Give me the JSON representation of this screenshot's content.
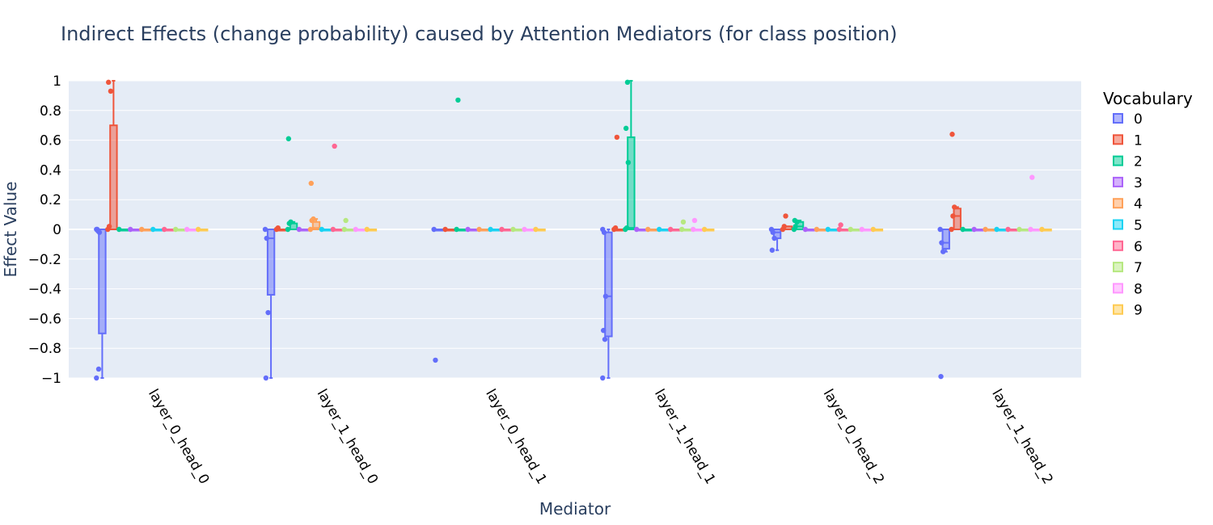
{
  "chart_data": {
    "type": "box",
    "title": "Indirect Effects (change probability) caused by Attention Mediators (for class position)",
    "xlabel": "Mediator",
    "ylabel": "Effect Value",
    "ylim": [
      -1,
      1
    ],
    "yticks": [
      "1",
      "0.8",
      "0.6",
      "0.4",
      "0.2",
      "0",
      "−0.2",
      "−0.4",
      "−0.6",
      "−0.8",
      "−1"
    ],
    "ytick_values": [
      1,
      0.8,
      0.6,
      0.4,
      0.2,
      0,
      -0.2,
      -0.4,
      -0.6,
      -0.8,
      -1
    ],
    "grid": true,
    "categories": [
      "layer_0_head_0",
      "layer_1_head_0",
      "layer_0_head_1",
      "layer_1_head_1",
      "layer_0_head_2",
      "layer_1_head_2"
    ],
    "legend": {
      "title": "Vocabulary",
      "position": "right"
    },
    "series": [
      {
        "name": "0",
        "color": "#636efa",
        "boxes": [
          {
            "q1": -0.7,
            "median": 0,
            "q3": 0,
            "lower": -1,
            "upper": 0,
            "points": [
              0,
              -0.01,
              -0.02,
              0,
              -0.94,
              -1
            ]
          },
          {
            "q1": -0.44,
            "median": -0.06,
            "q3": 0,
            "lower": -1,
            "upper": 0,
            "points": [
              0,
              -0.06,
              -0.56,
              -1
            ]
          },
          {
            "q1": 0,
            "median": 0,
            "q3": 0,
            "lower": 0,
            "upper": 0,
            "points": [
              0,
              -0.88
            ]
          },
          {
            "q1": -0.72,
            "median": -0.45,
            "q3": -0.02,
            "lower": -1,
            "upper": 0,
            "points": [
              0,
              -0.02,
              -0.45,
              -0.68,
              -0.74,
              -1
            ]
          },
          {
            "q1": -0.06,
            "median": -0.02,
            "q3": 0,
            "lower": -0.14,
            "upper": 0,
            "points": [
              0,
              -0.02,
              -0.06,
              -0.14
            ]
          },
          {
            "q1": -0.13,
            "median": -0.09,
            "q3": 0,
            "lower": -0.15,
            "upper": 0,
            "points": [
              0,
              -0.09,
              -0.15,
              -0.99
            ]
          }
        ]
      },
      {
        "name": "1",
        "color": "#ef553b",
        "boxes": [
          {
            "q1": 0,
            "median": 0,
            "q3": 0.7,
            "lower": 0,
            "upper": 1,
            "points": [
              0,
              0.02,
              0.93,
              0.99
            ]
          },
          {
            "q1": 0,
            "median": 0,
            "q3": 0,
            "lower": 0,
            "upper": 0,
            "points": [
              0,
              0.01
            ]
          },
          {
            "q1": 0,
            "median": 0,
            "q3": 0,
            "lower": 0,
            "upper": 0,
            "points": [
              0
            ]
          },
          {
            "q1": 0,
            "median": 0,
            "q3": 0,
            "lower": 0,
            "upper": 0,
            "points": [
              0,
              0.01,
              0.62
            ]
          },
          {
            "q1": 0,
            "median": 0,
            "q3": 0.02,
            "lower": 0,
            "upper": 0.02,
            "points": [
              0,
              0.02,
              0.09
            ]
          },
          {
            "q1": 0,
            "median": 0.09,
            "q3": 0.14,
            "lower": 0,
            "upper": 0.15,
            "points": [
              0,
              0.09,
              0.15,
              0.64
            ]
          }
        ]
      },
      {
        "name": "2",
        "color": "#00cc96",
        "boxes": [
          {
            "q1": 0,
            "median": 0,
            "q3": 0,
            "lower": 0,
            "upper": 0,
            "points": [
              0
            ]
          },
          {
            "q1": 0,
            "median": 0,
            "q3": 0.04,
            "lower": 0,
            "upper": 0.05,
            "points": [
              0,
              0.04,
              0.05,
              0.61
            ]
          },
          {
            "q1": 0,
            "median": 0,
            "q3": 0,
            "lower": 0,
            "upper": 0,
            "points": [
              0,
              0.87
            ]
          },
          {
            "q1": 0,
            "median": 0.01,
            "q3": 0.62,
            "lower": 0,
            "upper": 1,
            "points": [
              0,
              0.01,
              0.45,
              0.68,
              0.99
            ]
          },
          {
            "q1": 0,
            "median": 0.02,
            "q3": 0.05,
            "lower": 0,
            "upper": 0.06,
            "points": [
              0,
              0.02,
              0.05,
              0.06
            ]
          },
          {
            "q1": 0,
            "median": 0,
            "q3": 0,
            "lower": 0,
            "upper": 0,
            "points": [
              0
            ]
          }
        ]
      },
      {
        "name": "3",
        "color": "#ab63fa",
        "boxes": [
          {
            "q1": 0,
            "median": 0,
            "q3": 0,
            "lower": 0,
            "upper": 0,
            "points": [
              0
            ]
          },
          {
            "q1": 0,
            "median": 0,
            "q3": 0,
            "lower": 0,
            "upper": 0,
            "points": [
              0
            ]
          },
          {
            "q1": 0,
            "median": 0,
            "q3": 0,
            "lower": 0,
            "upper": 0,
            "points": [
              0
            ]
          },
          {
            "q1": 0,
            "median": 0,
            "q3": 0,
            "lower": 0,
            "upper": 0,
            "points": [
              0
            ]
          },
          {
            "q1": 0,
            "median": 0,
            "q3": 0,
            "lower": 0,
            "upper": 0,
            "points": [
              0
            ]
          },
          {
            "q1": 0,
            "median": 0,
            "q3": 0,
            "lower": 0,
            "upper": 0,
            "points": [
              0
            ]
          }
        ]
      },
      {
        "name": "4",
        "color": "#ffa15a",
        "boxes": [
          {
            "q1": 0,
            "median": 0,
            "q3": 0,
            "lower": 0,
            "upper": 0,
            "points": [
              0
            ]
          },
          {
            "q1": 0,
            "median": 0.01,
            "q3": 0.05,
            "lower": 0,
            "upper": 0.07,
            "points": [
              0,
              0.06,
              0.07,
              0.31
            ]
          },
          {
            "q1": 0,
            "median": 0,
            "q3": 0,
            "lower": 0,
            "upper": 0,
            "points": [
              0
            ]
          },
          {
            "q1": 0,
            "median": 0,
            "q3": 0,
            "lower": 0,
            "upper": 0,
            "points": [
              0
            ]
          },
          {
            "q1": 0,
            "median": 0,
            "q3": 0,
            "lower": 0,
            "upper": 0,
            "points": [
              0
            ]
          },
          {
            "q1": 0,
            "median": 0,
            "q3": 0,
            "lower": 0,
            "upper": 0,
            "points": [
              0
            ]
          }
        ]
      },
      {
        "name": "5",
        "color": "#19d3f3",
        "boxes": [
          {
            "q1": 0,
            "median": 0,
            "q3": 0,
            "lower": 0,
            "upper": 0,
            "points": [
              0
            ]
          },
          {
            "q1": 0,
            "median": 0,
            "q3": 0,
            "lower": 0,
            "upper": 0,
            "points": [
              0
            ]
          },
          {
            "q1": 0,
            "median": 0,
            "q3": 0,
            "lower": 0,
            "upper": 0,
            "points": [
              0
            ]
          },
          {
            "q1": 0,
            "median": 0,
            "q3": 0,
            "lower": 0,
            "upper": 0,
            "points": [
              0
            ]
          },
          {
            "q1": 0,
            "median": 0,
            "q3": 0,
            "lower": 0,
            "upper": 0,
            "points": [
              0
            ]
          },
          {
            "q1": 0,
            "median": 0,
            "q3": 0,
            "lower": 0,
            "upper": 0,
            "points": [
              0
            ]
          }
        ]
      },
      {
        "name": "6",
        "color": "#ff6692",
        "boxes": [
          {
            "q1": 0,
            "median": 0,
            "q3": 0,
            "lower": 0,
            "upper": 0,
            "points": [
              0
            ]
          },
          {
            "q1": 0,
            "median": 0,
            "q3": 0,
            "lower": 0,
            "upper": 0,
            "points": [
              0,
              0.56
            ]
          },
          {
            "q1": 0,
            "median": 0,
            "q3": 0,
            "lower": 0,
            "upper": 0,
            "points": [
              0
            ]
          },
          {
            "q1": 0,
            "median": 0,
            "q3": 0,
            "lower": 0,
            "upper": 0,
            "points": [
              0
            ]
          },
          {
            "q1": 0,
            "median": 0,
            "q3": 0,
            "lower": 0,
            "upper": 0,
            "points": [
              0,
              0.03
            ]
          },
          {
            "q1": 0,
            "median": 0,
            "q3": 0,
            "lower": 0,
            "upper": 0,
            "points": [
              0
            ]
          }
        ]
      },
      {
        "name": "7",
        "color": "#b6e880",
        "boxes": [
          {
            "q1": 0,
            "median": 0,
            "q3": 0,
            "lower": 0,
            "upper": 0,
            "points": [
              0
            ]
          },
          {
            "q1": 0,
            "median": 0,
            "q3": 0,
            "lower": 0,
            "upper": 0,
            "points": [
              0,
              0.06
            ]
          },
          {
            "q1": 0,
            "median": 0,
            "q3": 0,
            "lower": 0,
            "upper": 0,
            "points": [
              0
            ]
          },
          {
            "q1": 0,
            "median": 0,
            "q3": 0,
            "lower": 0,
            "upper": 0,
            "points": [
              0,
              0.05
            ]
          },
          {
            "q1": 0,
            "median": 0,
            "q3": 0,
            "lower": 0,
            "upper": 0,
            "points": [
              0
            ]
          },
          {
            "q1": 0,
            "median": 0,
            "q3": 0,
            "lower": 0,
            "upper": 0,
            "points": [
              0
            ]
          }
        ]
      },
      {
        "name": "8",
        "color": "#ff97ff",
        "boxes": [
          {
            "q1": 0,
            "median": 0,
            "q3": 0,
            "lower": 0,
            "upper": 0,
            "points": [
              0
            ]
          },
          {
            "q1": 0,
            "median": 0,
            "q3": 0,
            "lower": 0,
            "upper": 0,
            "points": [
              0
            ]
          },
          {
            "q1": 0,
            "median": 0,
            "q3": 0,
            "lower": 0,
            "upper": 0,
            "points": [
              0
            ]
          },
          {
            "q1": 0,
            "median": 0,
            "q3": 0,
            "lower": 0,
            "upper": 0,
            "points": [
              0,
              0.06
            ]
          },
          {
            "q1": 0,
            "median": 0,
            "q3": 0,
            "lower": 0,
            "upper": 0,
            "points": [
              0
            ]
          },
          {
            "q1": 0,
            "median": 0,
            "q3": 0,
            "lower": 0,
            "upper": 0,
            "points": [
              0,
              0.35
            ]
          }
        ]
      },
      {
        "name": "9",
        "color": "#fecb52",
        "boxes": [
          {
            "q1": 0,
            "median": 0,
            "q3": 0,
            "lower": 0,
            "upper": 0,
            "points": [
              0
            ]
          },
          {
            "q1": 0,
            "median": 0,
            "q3": 0,
            "lower": 0,
            "upper": 0,
            "points": [
              0
            ]
          },
          {
            "q1": 0,
            "median": 0,
            "q3": 0,
            "lower": 0,
            "upper": 0,
            "points": [
              0
            ]
          },
          {
            "q1": 0,
            "median": 0,
            "q3": 0,
            "lower": 0,
            "upper": 0,
            "points": [
              0
            ]
          },
          {
            "q1": 0,
            "median": 0,
            "q3": 0,
            "lower": 0,
            "upper": 0,
            "points": [
              0
            ]
          },
          {
            "q1": 0,
            "median": 0,
            "q3": 0,
            "lower": 0,
            "upper": 0,
            "points": [
              0
            ]
          }
        ]
      }
    ]
  }
}
